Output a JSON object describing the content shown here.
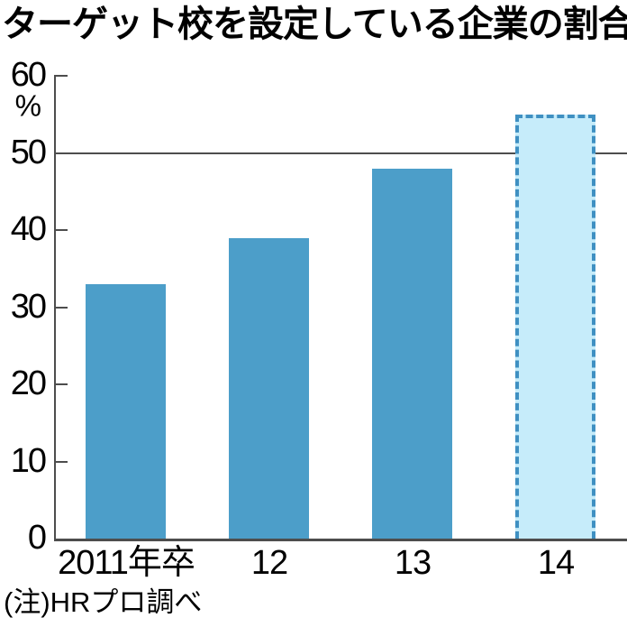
{
  "chart_data": {
    "type": "bar",
    "title": "ターゲット校を設定している企業の割合",
    "unit_label": "%",
    "categories": [
      "2011年卒",
      "12",
      "13",
      "14"
    ],
    "values": [
      33,
      39,
      48,
      55
    ],
    "bar_styles": [
      "solid",
      "solid",
      "solid",
      "forecast-dashed"
    ],
    "ylim": [
      0,
      60
    ],
    "yticks": [
      0,
      10,
      20,
      30,
      40,
      50,
      60
    ],
    "reference_line_value": 50,
    "grid": "none (single horizontal reference line at 50)",
    "legend": "none",
    "note": "(注)HRプロ調べ",
    "colors": {
      "bar_fill": "#4c9ec9",
      "forecast_fill": "#c6ecfa",
      "forecast_border": "#3f90c2",
      "axis_line": "#4d4d4d",
      "text": "#000000"
    }
  }
}
